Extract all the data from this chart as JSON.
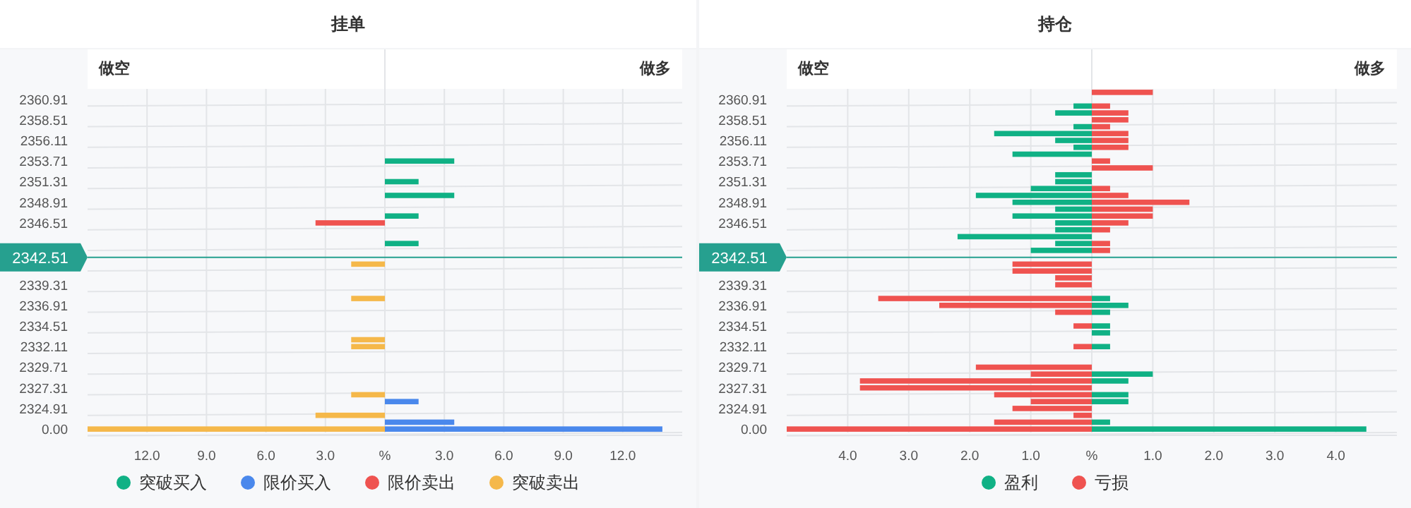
{
  "chart_data": [
    {
      "type": "bar",
      "orientation": "horizontal",
      "title": "挂单",
      "annotations": [
        "做空",
        "做多"
      ],
      "stacked": true,
      "categories": [
        null,
        "2360.91",
        null,
        null,
        "2358.51",
        null,
        null,
        "2356.11",
        null,
        null,
        "2353.71",
        null,
        null,
        "2351.31",
        null,
        null,
        "2348.91",
        null,
        null,
        "2346.51",
        null,
        null,
        null,
        null,
        "2342.51",
        null,
        null,
        null,
        "2339.31",
        null,
        null,
        "2336.91",
        null,
        null,
        "2334.51",
        null,
        null,
        "2332.11",
        null,
        null,
        "2329.71",
        null,
        null,
        "2327.31",
        null,
        null,
        "2324.91",
        null,
        null,
        "0.00"
      ],
      "series": [
        {
          "name": "突破买入",
          "color": "#10b185",
          "values": [
            null,
            null,
            null,
            null,
            null,
            null,
            null,
            null,
            null,
            null,
            3.5,
            null,
            null,
            1.7,
            null,
            3.5,
            null,
            null,
            1.7,
            null,
            null,
            null,
            1.7,
            null,
            null,
            null,
            null,
            null,
            null,
            null,
            null,
            null,
            null,
            null,
            null,
            null,
            null,
            null,
            null,
            null,
            null,
            null,
            null,
            null,
            null,
            null,
            null,
            null,
            null,
            null
          ]
        },
        {
          "name": "限价买入",
          "color": "#4a88ec",
          "values": [
            null,
            null,
            null,
            null,
            null,
            null,
            null,
            null,
            null,
            null,
            null,
            null,
            null,
            null,
            null,
            null,
            null,
            null,
            null,
            null,
            null,
            null,
            null,
            null,
            null,
            null,
            null,
            null,
            null,
            null,
            null,
            null,
            null,
            null,
            null,
            null,
            null,
            null,
            null,
            null,
            null,
            null,
            null,
            null,
            null,
            1.7,
            null,
            null,
            3.5,
            14.0
          ]
        },
        {
          "name": "限价卖出",
          "color": "#ef5350",
          "values": [
            null,
            null,
            null,
            null,
            null,
            null,
            null,
            null,
            null,
            null,
            null,
            null,
            null,
            null,
            null,
            null,
            null,
            null,
            null,
            -3.5,
            null,
            null,
            null,
            null,
            null,
            null,
            null,
            null,
            null,
            null,
            null,
            null,
            null,
            null,
            null,
            null,
            null,
            null,
            null,
            null,
            null,
            null,
            null,
            null,
            null,
            null,
            null,
            null,
            null,
            null
          ]
        },
        {
          "name": "突破卖出",
          "color": "#f5b84a",
          "values": [
            null,
            null,
            null,
            null,
            null,
            null,
            null,
            null,
            null,
            null,
            null,
            null,
            null,
            null,
            null,
            null,
            null,
            null,
            null,
            null,
            null,
            null,
            null,
            null,
            null,
            -1.7,
            null,
            null,
            null,
            null,
            -1.7,
            null,
            null,
            null,
            null,
            null,
            -1.7,
            -1.7,
            null,
            null,
            null,
            null,
            null,
            null,
            -1.7,
            null,
            null,
            -3.5,
            null,
            -15
          ]
        }
      ],
      "xlim": [
        -15,
        15
      ],
      "xticks": [
        {
          "value": -12,
          "label": "12.0"
        },
        {
          "value": -9,
          "label": "9.0"
        },
        {
          "value": -6,
          "label": "6.0"
        },
        {
          "value": -3,
          "label": "3.0"
        },
        {
          "value": 0,
          "label": "%"
        },
        {
          "value": 3,
          "label": "3.0"
        },
        {
          "value": 6,
          "label": "6.0"
        },
        {
          "value": 9,
          "label": "9.0"
        },
        {
          "value": 12,
          "label": "12.0"
        }
      ],
      "ref_lines": [
        {
          "axis": "y",
          "value": "2342.51",
          "color": "#26a08f"
        }
      ],
      "grid": true,
      "legend": "bottom"
    },
    {
      "type": "bar",
      "orientation": "horizontal",
      "title": "持仓",
      "annotations": [
        "做空",
        "做多"
      ],
      "stacked": true,
      "categories": [
        null,
        "2360.91",
        null,
        null,
        "2358.51",
        null,
        null,
        "2356.11",
        null,
        null,
        "2353.71",
        null,
        null,
        "2351.31",
        null,
        null,
        "2348.91",
        null,
        null,
        "2346.51",
        null,
        null,
        null,
        null,
        "2342.51",
        null,
        null,
        null,
        "2339.31",
        null,
        null,
        "2336.91",
        null,
        null,
        "2334.51",
        null,
        null,
        "2332.11",
        null,
        null,
        "2329.71",
        null,
        null,
        "2327.31",
        null,
        null,
        "2324.91",
        null,
        null,
        "0.00"
      ],
      "series": [
        {
          "name": "盈利",
          "color": "#10b185",
          "values": [
            null,
            null,
            -0.3,
            -0.6,
            null,
            -0.3,
            -1.6,
            -0.6,
            -0.3,
            -1.3,
            null,
            null,
            -0.6,
            -0.6,
            -1.0,
            -1.9,
            -1.3,
            -0.6,
            -1.3,
            -0.6,
            -0.6,
            -2.2,
            -0.6,
            -1.0,
            null,
            null,
            null,
            null,
            null,
            null,
            0.3,
            0.6,
            0.3,
            null,
            0.3,
            0.3,
            null,
            0.3,
            null,
            null,
            null,
            1.0,
            0.6,
            null,
            0.6,
            0.6,
            null,
            null,
            0.3,
            4.5
          ]
        },
        {
          "name": "亏损",
          "color": "#ef5350",
          "values": [
            1.0,
            null,
            0.3,
            0.6,
            0.6,
            0.3,
            0.6,
            0.6,
            0.6,
            null,
            0.3,
            1.0,
            null,
            null,
            0.3,
            0.6,
            1.6,
            1.0,
            1.0,
            0.6,
            0.3,
            null,
            0.3,
            0.3,
            null,
            -1.3,
            -1.3,
            -0.6,
            -0.6,
            null,
            -3.5,
            -2.5,
            -0.6,
            null,
            -0.3,
            null,
            null,
            -0.3,
            null,
            null,
            -1.9,
            -1.0,
            -3.8,
            -3.8,
            -1.6,
            -1.0,
            -1.3,
            -0.3,
            -1.6,
            -5.0
          ]
        }
      ],
      "xlim": [
        -5,
        5
      ],
      "xticks": [
        {
          "value": -4,
          "label": "4.0"
        },
        {
          "value": -3,
          "label": "3.0"
        },
        {
          "value": -2,
          "label": "2.0"
        },
        {
          "value": -1,
          "label": "1.0"
        },
        {
          "value": 0,
          "label": "%"
        },
        {
          "value": 1,
          "label": "1.0"
        },
        {
          "value": 2,
          "label": "2.0"
        },
        {
          "value": 3,
          "label": "3.0"
        },
        {
          "value": 4,
          "label": "4.0"
        }
      ],
      "ref_lines": [
        {
          "axis": "y",
          "value": "2342.51",
          "color": "#26a08f"
        }
      ],
      "grid": true,
      "legend": "bottom"
    }
  ]
}
